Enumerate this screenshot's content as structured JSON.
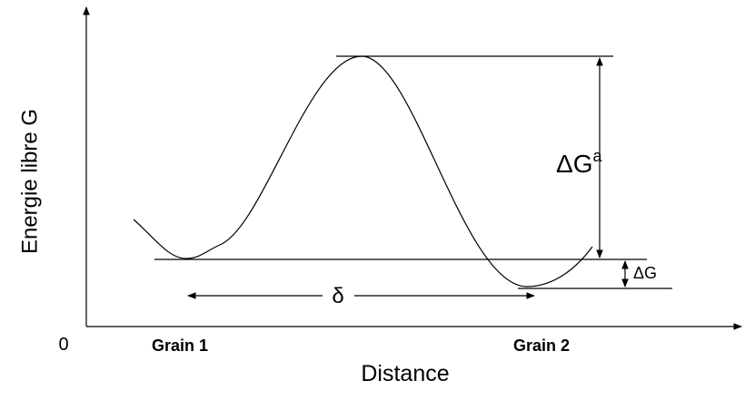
{
  "axes": {
    "y_label": "Energie libre G",
    "x_label": "Distance",
    "origin": "0"
  },
  "labels": {
    "grain_1": "Grain 1",
    "grain_2": "Grain 2",
    "barrier": {
      "symbol": "ΔG",
      "superscript": "a"
    },
    "delta_g": "ΔG",
    "delta": "δ"
  }
}
